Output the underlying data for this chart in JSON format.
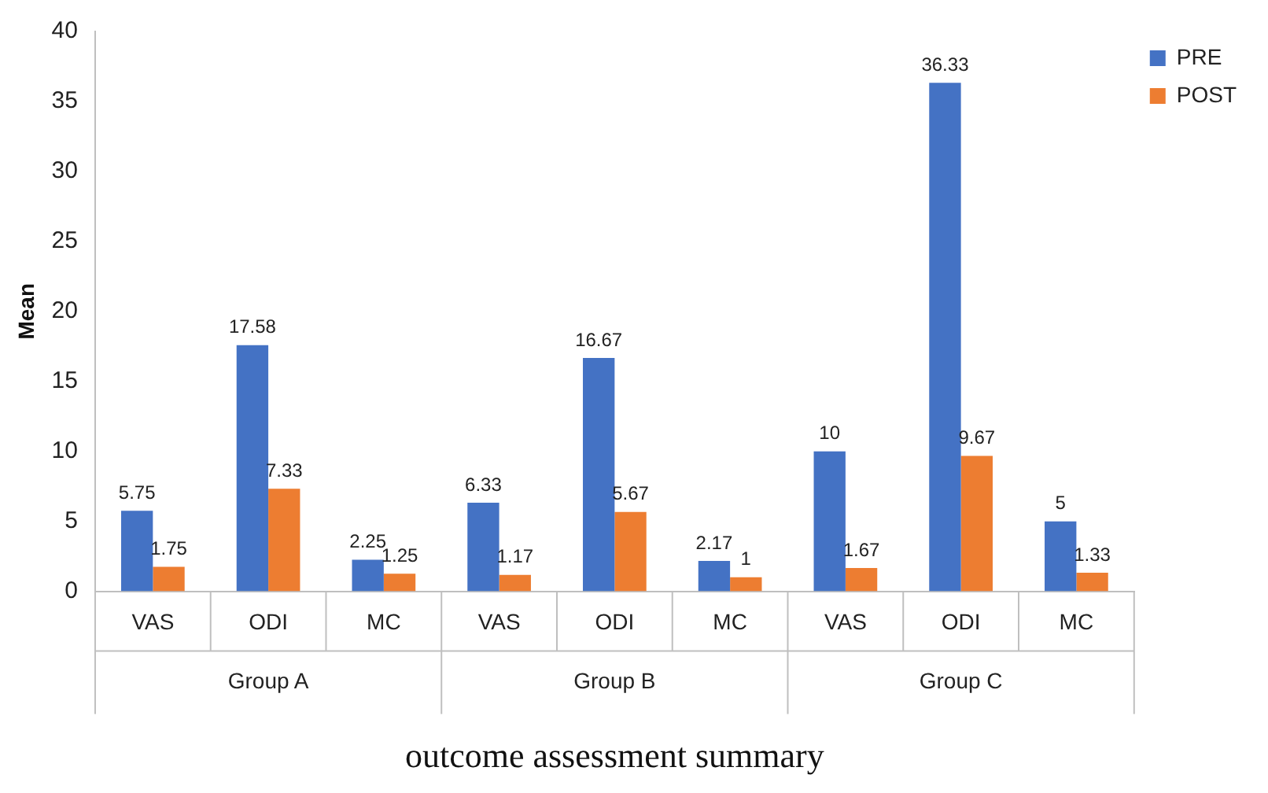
{
  "chart_data": {
    "type": "bar",
    "xlabel": "outcome assessment summary",
    "ylabel": "Mean",
    "categories": [
      "VAS",
      "ODI",
      "MC",
      "VAS",
      "ODI",
      "MC",
      "VAS",
      "ODI",
      "MC"
    ],
    "series": [
      {
        "name": "PRE",
        "color": "#4472c4",
        "values": [
          5.75,
          17.58,
          2.25,
          6.33,
          16.67,
          2.17,
          10,
          36.33,
          5
        ]
      },
      {
        "name": "POST",
        "color": "#ed7d31",
        "values": [
          1.75,
          7.33,
          1.25,
          1.17,
          5.67,
          1,
          1.67,
          9.67,
          1.33
        ]
      }
    ],
    "annotations": [
      "Group A",
      "Group B",
      "Group C"
    ],
    "ylim": [
      0,
      40
    ],
    "yticks": [
      0,
      5,
      10,
      15,
      20,
      25,
      30,
      35,
      40
    ],
    "grid": false,
    "legend": "top right",
    "data_labels": true
  }
}
